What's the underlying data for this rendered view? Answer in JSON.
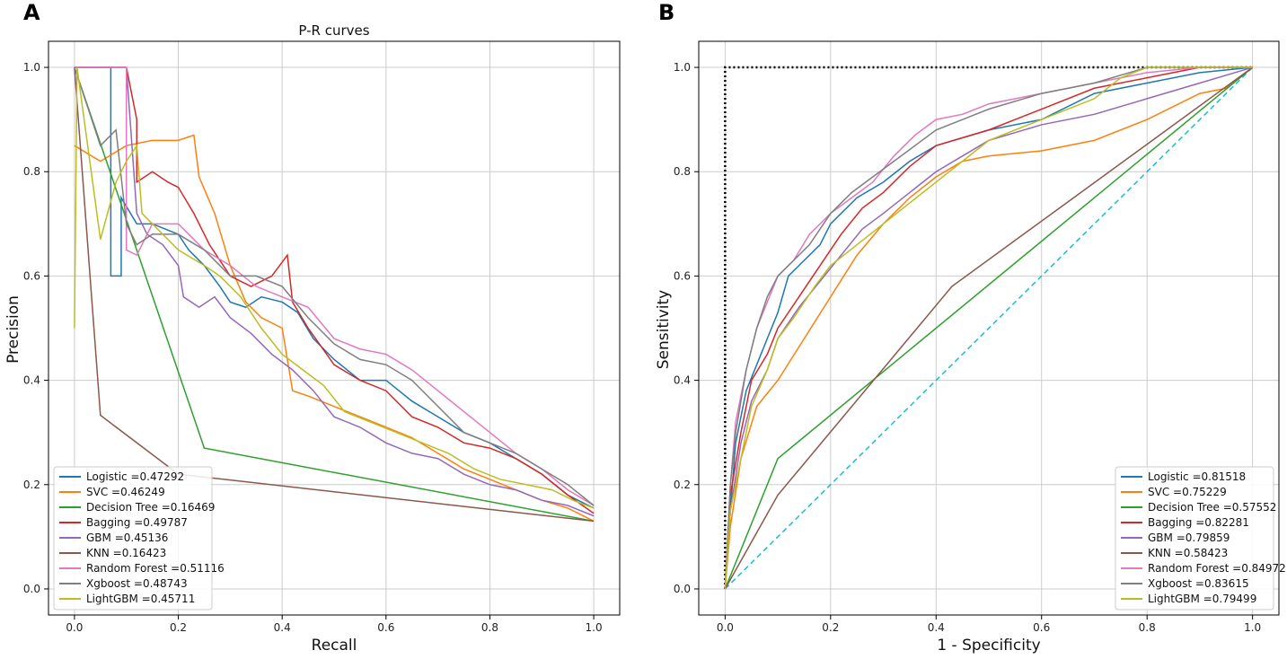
{
  "colors": {
    "Logistic": "#1f77b4",
    "SVC": "#ff7f0e",
    "Decision Tree": "#2ca02c",
    "Bagging": "#d62728",
    "GBM": "#9467bd",
    "KNN": "#8c564b",
    "Random Forest": "#e377c2",
    "Xgboost": "#7f7f7f",
    "LightGBM": "#bcbd22",
    "chance": "#17becf",
    "perfect": "#000000",
    "grid": "#cccccc",
    "axes": "#000000"
  },
  "chart_data": [
    {
      "panel": "A",
      "type": "line",
      "title": "P-R curves",
      "xlabel": "Recall",
      "ylabel": "Precision",
      "xlim": [
        -0.05,
        1.05
      ],
      "ylim": [
        -0.05,
        1.05
      ],
      "xticks": [
        "0.0",
        "0.2",
        "0.4",
        "0.6",
        "0.8",
        "1.0"
      ],
      "yticks": [
        "0.0",
        "0.2",
        "0.4",
        "0.6",
        "0.8",
        "1.0"
      ],
      "grid": true,
      "legend_position": "lower-left",
      "series": [
        {
          "name": "Logistic",
          "legend": "Logistic =0.47292",
          "x": [
            0.0,
            0.07,
            0.07,
            0.09,
            0.09,
            0.12,
            0.15,
            0.2,
            0.22,
            0.25,
            0.28,
            0.3,
            0.33,
            0.36,
            0.4,
            0.43,
            0.46,
            0.5,
            0.55,
            0.6,
            0.65,
            0.7,
            0.75,
            0.8,
            0.85,
            0.9,
            0.95,
            1.0
          ],
          "y": [
            1.0,
            1.0,
            0.6,
            0.6,
            0.75,
            0.7,
            0.7,
            0.68,
            0.65,
            0.62,
            0.58,
            0.55,
            0.54,
            0.56,
            0.55,
            0.53,
            0.48,
            0.44,
            0.4,
            0.4,
            0.36,
            0.33,
            0.3,
            0.28,
            0.25,
            0.22,
            0.18,
            0.155
          ]
        },
        {
          "name": "SVC",
          "legend": "SVC =0.46249",
          "x": [
            0.0,
            0.05,
            0.1,
            0.15,
            0.2,
            0.23,
            0.24,
            0.27,
            0.3,
            0.33,
            0.36,
            0.4,
            0.42,
            0.45,
            0.5,
            0.55,
            0.6,
            0.65,
            0.7,
            0.75,
            0.8,
            0.85,
            0.9,
            0.95,
            1.0
          ],
          "y": [
            0.85,
            0.82,
            0.85,
            0.86,
            0.86,
            0.87,
            0.79,
            0.72,
            0.62,
            0.55,
            0.52,
            0.5,
            0.38,
            0.37,
            0.35,
            0.33,
            0.31,
            0.29,
            0.26,
            0.23,
            0.21,
            0.19,
            0.17,
            0.155,
            0.13
          ]
        },
        {
          "name": "Decision Tree",
          "legend": "Decision Tree =0.16469",
          "x": [
            0.0,
            0.25,
            1.0
          ],
          "y": [
            1.0,
            0.27,
            0.13
          ]
        },
        {
          "name": "Bagging",
          "legend": "Bagging =0.49787",
          "x": [
            0.0,
            0.1,
            0.12,
            0.12,
            0.15,
            0.18,
            0.2,
            0.23,
            0.26,
            0.3,
            0.34,
            0.38,
            0.41,
            0.42,
            0.45,
            0.5,
            0.55,
            0.6,
            0.65,
            0.7,
            0.75,
            0.8,
            0.85,
            0.9,
            0.95,
            1.0
          ],
          "y": [
            1.0,
            1.0,
            0.9,
            0.78,
            0.8,
            0.78,
            0.77,
            0.72,
            0.66,
            0.6,
            0.58,
            0.6,
            0.64,
            0.55,
            0.5,
            0.43,
            0.4,
            0.38,
            0.33,
            0.31,
            0.28,
            0.27,
            0.25,
            0.22,
            0.18,
            0.145
          ]
        },
        {
          "name": "GBM",
          "legend": "GBM =0.45136",
          "x": [
            0.0,
            0.1,
            0.12,
            0.14,
            0.17,
            0.2,
            0.21,
            0.24,
            0.27,
            0.3,
            0.34,
            0.38,
            0.42,
            0.46,
            0.5,
            0.55,
            0.6,
            0.65,
            0.7,
            0.75,
            0.8,
            0.85,
            0.9,
            0.95,
            1.0
          ],
          "y": [
            1.0,
            1.0,
            0.72,
            0.68,
            0.66,
            0.62,
            0.56,
            0.54,
            0.56,
            0.52,
            0.49,
            0.45,
            0.42,
            0.38,
            0.33,
            0.31,
            0.28,
            0.26,
            0.25,
            0.22,
            0.2,
            0.19,
            0.17,
            0.16,
            0.14
          ]
        },
        {
          "name": "KNN",
          "legend": "KNN =0.16423",
          "x": [
            0.0,
            0.05,
            0.2,
            1.0
          ],
          "y": [
            1.0,
            0.333,
            0.22,
            0.13
          ]
        },
        {
          "name": "Random Forest",
          "legend": "Random Forest =0.51116",
          "x": [
            0.0,
            0.1,
            0.1,
            0.12,
            0.15,
            0.2,
            0.25,
            0.3,
            0.35,
            0.4,
            0.45,
            0.5,
            0.55,
            0.6,
            0.65,
            0.7,
            0.75,
            0.8,
            0.85,
            0.9,
            0.95,
            1.0
          ],
          "y": [
            1.0,
            1.0,
            0.65,
            0.64,
            0.7,
            0.7,
            0.65,
            0.62,
            0.58,
            0.56,
            0.54,
            0.48,
            0.46,
            0.45,
            0.42,
            0.38,
            0.34,
            0.3,
            0.26,
            0.23,
            0.19,
            0.16
          ]
        },
        {
          "name": "Xgboost",
          "legend": "Xgboost =0.48743",
          "x": [
            0.0,
            0.05,
            0.08,
            0.1,
            0.12,
            0.15,
            0.2,
            0.25,
            0.3,
            0.35,
            0.4,
            0.45,
            0.5,
            0.55,
            0.6,
            0.65,
            0.7,
            0.75,
            0.8,
            0.85,
            0.9,
            0.95,
            1.0
          ],
          "y": [
            1.0,
            0.85,
            0.88,
            0.7,
            0.66,
            0.68,
            0.68,
            0.65,
            0.6,
            0.6,
            0.58,
            0.52,
            0.47,
            0.44,
            0.43,
            0.4,
            0.35,
            0.3,
            0.28,
            0.26,
            0.23,
            0.2,
            0.16
          ]
        },
        {
          "name": "LightGBM",
          "legend": "LightGBM =0.45711",
          "x": [
            0.0,
            0.005,
            0.05,
            0.08,
            0.1,
            0.12,
            0.13,
            0.15,
            0.18,
            0.2,
            0.25,
            0.28,
            0.32,
            0.36,
            0.4,
            0.44,
            0.48,
            0.52,
            0.57,
            0.62,
            0.67,
            0.72,
            0.77,
            0.82,
            0.87,
            0.92,
            0.96,
            1.0
          ],
          "y": [
            0.5,
            1.0,
            0.67,
            0.78,
            0.82,
            0.85,
            0.72,
            0.7,
            0.67,
            0.65,
            0.62,
            0.6,
            0.56,
            0.5,
            0.45,
            0.42,
            0.39,
            0.34,
            0.32,
            0.3,
            0.28,
            0.26,
            0.23,
            0.21,
            0.2,
            0.19,
            0.17,
            0.155
          ]
        }
      ]
    },
    {
      "panel": "B",
      "type": "line",
      "title": "",
      "xlabel": "1 - Specificity",
      "ylabel": "Sensitivity",
      "xlim": [
        -0.05,
        1.05
      ],
      "ylim": [
        -0.05,
        1.05
      ],
      "xticks": [
        "0.0",
        "0.2",
        "0.4",
        "0.6",
        "0.8",
        "1.0"
      ],
      "yticks": [
        "0.0",
        "0.2",
        "0.4",
        "0.6",
        "0.8",
        "1.0"
      ],
      "grid": true,
      "legend_position": "lower-right",
      "reference_lines": [
        {
          "name": "perfect-classifier",
          "style": "dotted",
          "x": [
            0,
            0,
            1
          ],
          "y": [
            0,
            1,
            1
          ]
        },
        {
          "name": "chance-diagonal",
          "style": "dashed",
          "x": [
            0,
            1
          ],
          "y": [
            0,
            1
          ]
        }
      ],
      "series": [
        {
          "name": "Logistic",
          "legend": "Logistic =0.81518",
          "x": [
            0,
            0.01,
            0.02,
            0.04,
            0.06,
            0.08,
            0.1,
            0.12,
            0.15,
            0.18,
            0.2,
            0.25,
            0.3,
            0.35,
            0.4,
            0.5,
            0.6,
            0.7,
            0.8,
            0.9,
            1.0
          ],
          "y": [
            0,
            0.15,
            0.28,
            0.38,
            0.43,
            0.48,
            0.53,
            0.6,
            0.63,
            0.66,
            0.7,
            0.75,
            0.78,
            0.82,
            0.85,
            0.88,
            0.9,
            0.95,
            0.97,
            0.99,
            1.0
          ]
        },
        {
          "name": "SVC",
          "legend": "SVC =0.75229",
          "x": [
            0,
            0.01,
            0.03,
            0.06,
            0.1,
            0.15,
            0.2,
            0.25,
            0.3,
            0.35,
            0.4,
            0.45,
            0.5,
            0.6,
            0.7,
            0.8,
            0.9,
            0.95,
            1.0
          ],
          "y": [
            0,
            0.12,
            0.25,
            0.35,
            0.4,
            0.48,
            0.56,
            0.64,
            0.7,
            0.75,
            0.79,
            0.82,
            0.83,
            0.84,
            0.86,
            0.9,
            0.95,
            0.96,
            1.0
          ]
        },
        {
          "name": "Decision Tree",
          "legend": "Decision Tree =0.57552",
          "x": [
            0,
            0.1,
            1.0
          ],
          "y": [
            0,
            0.25,
            1.0
          ]
        },
        {
          "name": "Bagging",
          "legend": "Bagging =0.82281",
          "x": [
            0,
            0.01,
            0.03,
            0.05,
            0.08,
            0.1,
            0.14,
            0.18,
            0.22,
            0.26,
            0.3,
            0.35,
            0.4,
            0.5,
            0.6,
            0.7,
            0.8,
            0.9,
            1.0
          ],
          "y": [
            0,
            0.18,
            0.3,
            0.4,
            0.45,
            0.5,
            0.56,
            0.62,
            0.68,
            0.73,
            0.76,
            0.81,
            0.85,
            0.88,
            0.92,
            0.96,
            0.98,
            1.0,
            1.0
          ]
        },
        {
          "name": "GBM",
          "legend": "GBM =0.79859",
          "x": [
            0,
            0.01,
            0.03,
            0.05,
            0.08,
            0.1,
            0.14,
            0.18,
            0.22,
            0.26,
            0.3,
            0.35,
            0.4,
            0.45,
            0.5,
            0.6,
            0.7,
            0.8,
            0.9,
            1.0
          ],
          "y": [
            0,
            0.15,
            0.28,
            0.36,
            0.42,
            0.48,
            0.54,
            0.59,
            0.64,
            0.69,
            0.72,
            0.76,
            0.8,
            0.83,
            0.86,
            0.89,
            0.91,
            0.94,
            0.97,
            1.0
          ]
        },
        {
          "name": "KNN",
          "legend": "KNN =0.58423",
          "x": [
            0,
            0.1,
            0.43,
            1.0
          ],
          "y": [
            0,
            0.18,
            0.58,
            1.0
          ]
        },
        {
          "name": "Random Forest",
          "legend": "Random Forest =0.84972",
          "x": [
            0,
            0.01,
            0.02,
            0.04,
            0.06,
            0.08,
            0.1,
            0.13,
            0.16,
            0.2,
            0.24,
            0.28,
            0.32,
            0.36,
            0.4,
            0.45,
            0.5,
            0.6,
            0.7,
            0.8,
            0.9,
            1.0
          ],
          "y": [
            0,
            0.2,
            0.32,
            0.42,
            0.5,
            0.55,
            0.6,
            0.63,
            0.68,
            0.72,
            0.75,
            0.78,
            0.83,
            0.87,
            0.9,
            0.91,
            0.93,
            0.95,
            0.97,
            0.99,
            1.0,
            1.0
          ]
        },
        {
          "name": "Xgboost",
          "legend": "Xgboost =0.83615",
          "x": [
            0,
            0.01,
            0.02,
            0.04,
            0.06,
            0.08,
            0.1,
            0.13,
            0.16,
            0.2,
            0.24,
            0.28,
            0.32,
            0.36,
            0.4,
            0.45,
            0.5,
            0.6,
            0.7,
            0.8,
            0.9,
            1.0
          ],
          "y": [
            0,
            0.2,
            0.3,
            0.42,
            0.5,
            0.56,
            0.6,
            0.63,
            0.66,
            0.72,
            0.76,
            0.79,
            0.82,
            0.85,
            0.88,
            0.9,
            0.92,
            0.95,
            0.97,
            1.0,
            1.0,
            1.0
          ]
        },
        {
          "name": "LightGBM",
          "legend": "LightGBM =0.79499",
          "x": [
            0,
            0.01,
            0.03,
            0.05,
            0.08,
            0.1,
            0.13,
            0.17,
            0.2,
            0.25,
            0.3,
            0.35,
            0.4,
            0.45,
            0.5,
            0.6,
            0.7,
            0.75,
            0.8,
            0.9,
            1.0
          ],
          "y": [
            0,
            0.15,
            0.25,
            0.35,
            0.42,
            0.48,
            0.52,
            0.58,
            0.62,
            0.66,
            0.7,
            0.74,
            0.78,
            0.82,
            0.86,
            0.9,
            0.94,
            0.98,
            1.0,
            1.0,
            1.0
          ]
        }
      ]
    }
  ],
  "panels": [
    {
      "letter": "A"
    },
    {
      "letter": "B"
    }
  ]
}
